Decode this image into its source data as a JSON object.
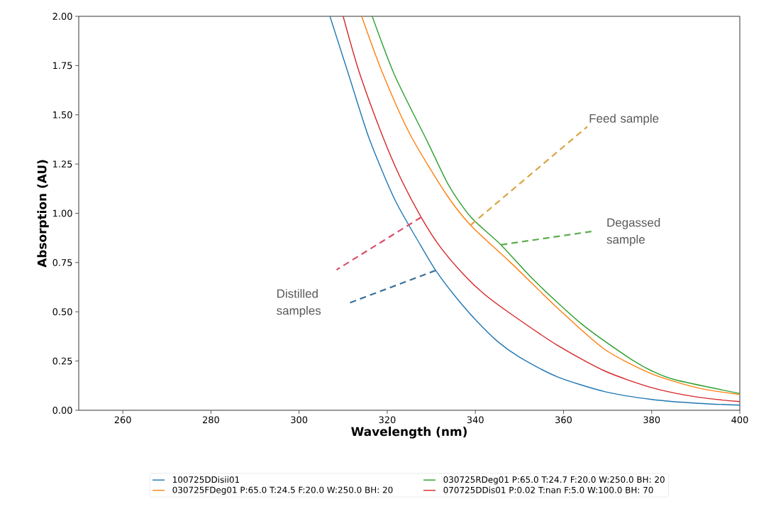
{
  "chart_data": {
    "type": "line",
    "xlabel": "Wavelength (nm)",
    "ylabel": "Absorption (AU)",
    "xlim": [
      250,
      400
    ],
    "ylim": [
      0,
      2
    ],
    "xticks": [
      260,
      280,
      300,
      320,
      340,
      360,
      380,
      400
    ],
    "yticks": [
      {
        "value": 0,
        "label": "0.00"
      },
      {
        "value": 0.25,
        "label": "0.25"
      },
      {
        "value": 0.5,
        "label": "0.50"
      },
      {
        "value": 0.75,
        "label": "0.75"
      },
      {
        "value": 1,
        "label": "1.00"
      },
      {
        "value": 1.25,
        "label": "1.25"
      },
      {
        "value": 1.5,
        "label": "1.50"
      },
      {
        "value": 1.75,
        "label": "1.75"
      },
      {
        "value": 2,
        "label": "2.00"
      }
    ],
    "grid": false,
    "legend": "bottom",
    "marker": "none",
    "line_style": "solid",
    "series": [
      {
        "name": "100725DDisii01",
        "color": "#1f77b4",
        "x": [
          307.0,
          311.3,
          315.9,
          321.7,
          327.5,
          331,
          335,
          340,
          345,
          350,
          358.6,
          369.3,
          380,
          390.6,
          400
        ],
        "values": [
          2.0,
          1.7,
          1.38,
          1.07,
          0.84,
          0.71,
          0.59,
          0.46,
          0.35,
          0.27,
          0.17,
          0.095,
          0.055,
          0.035,
          0.026
        ]
      },
      {
        "name": "030725FDeg01 P:65.0 T:24.5 F:20.0 W:250.0 BH: 20",
        "color": "#ff7f0e",
        "x": [
          314.2,
          318.8,
          325.2,
          333.3,
          338.9,
          348,
          358.6,
          369.3,
          380,
          390.6,
          400
        ],
        "values": [
          2.0,
          1.72,
          1.4,
          1.1,
          0.94,
          0.75,
          0.52,
          0.31,
          0.185,
          0.113,
          0.08
        ]
      },
      {
        "name": "030725RDeg01 P:65.0 T:24.7 F:20.0 W:250.0 BH: 20",
        "color": "#2ca02c",
        "x": [
          316.6,
          321.7,
          329.2,
          334,
          339,
          345.8,
          353.3,
          364,
          374.6,
          380,
          385.3,
          400
        ],
        "values": [
          2.0,
          1.7,
          1.36,
          1.14,
          0.98,
          0.84,
          0.66,
          0.44,
          0.27,
          0.2,
          0.155,
          0.085
        ]
      },
      {
        "name": "070725DDis01 P:0.02 T:nan F:5.0 W:100.0 BH: 70",
        "color": "#d62728",
        "x": [
          310.0,
          313.6,
          318.8,
          323,
          327.7,
          332,
          337.3,
          342,
          348,
          358.6,
          369.3,
          380,
          390.6,
          400
        ],
        "values": [
          2.0,
          1.72,
          1.4,
          1.18,
          0.98,
          0.83,
          0.69,
          0.59,
          0.49,
          0.33,
          0.2,
          0.115,
          0.066,
          0.044
        ]
      }
    ],
    "annotations": [
      {
        "text": "Feed sample",
        "x": 338.9,
        "y": 0.94
      },
      {
        "text": "Degassed sample",
        "x": 345.8,
        "y": 0.84
      },
      "Distilled samples"
    ]
  }
}
